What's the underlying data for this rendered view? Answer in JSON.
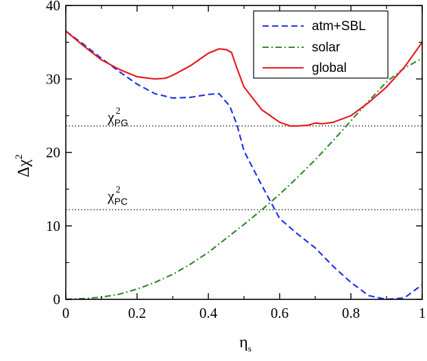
{
  "chart_data": {
    "type": "line",
    "xlabel_main": "η",
    "xlabel_sub": "s",
    "ylabel_main": "Δχ",
    "ylabel_sup": "2",
    "xlim": [
      0,
      1
    ],
    "ylim": [
      0,
      40
    ],
    "xticks": [
      0,
      0.2,
      0.4,
      0.6,
      0.8,
      1
    ],
    "yticks": [
      0,
      10,
      20,
      30,
      40
    ],
    "xtick_labels": [
      "0",
      "0.2",
      "0.4",
      "0.6",
      "0.8",
      "1"
    ],
    "ytick_labels": [
      "0",
      "10",
      "20",
      "30",
      "40"
    ],
    "legend_position": "top-right",
    "series": [
      {
        "name": "atm+SBL",
        "color": "#1f32e6",
        "style": "dashed",
        "x": [
          0,
          0.05,
          0.1,
          0.15,
          0.2,
          0.25,
          0.3,
          0.35,
          0.4,
          0.43,
          0.46,
          0.48,
          0.5,
          0.55,
          0.6,
          0.65,
          0.7,
          0.75,
          0.8,
          0.85,
          0.9,
          0.95,
          1.0
        ],
        "y": [
          36.5,
          34.7,
          32.8,
          31.0,
          29.3,
          28.0,
          27.4,
          27.5,
          27.9,
          28.0,
          26.3,
          23.8,
          20.2,
          15.5,
          11.0,
          8.9,
          7.0,
          4.5,
          2.3,
          0.5,
          0.0,
          0.2,
          2.0
        ]
      },
      {
        "name": "solar",
        "color": "#2e8b2e",
        "style": "dashdot",
        "x": [
          0,
          0.05,
          0.1,
          0.15,
          0.2,
          0.25,
          0.3,
          0.35,
          0.4,
          0.45,
          0.5,
          0.55,
          0.6,
          0.65,
          0.7,
          0.75,
          0.8,
          0.85,
          0.9,
          0.95,
          1.0
        ],
        "y": [
          0.0,
          0.1,
          0.3,
          0.7,
          1.4,
          2.3,
          3.4,
          4.8,
          6.4,
          8.3,
          10.2,
          12.2,
          14.3,
          16.6,
          19.0,
          21.6,
          24.3,
          27.0,
          29.6,
          31.5,
          32.8
        ]
      },
      {
        "name": "global",
        "color": "#e8191e",
        "style": "solid",
        "x": [
          0,
          0.05,
          0.1,
          0.15,
          0.2,
          0.25,
          0.28,
          0.3,
          0.35,
          0.4,
          0.43,
          0.45,
          0.465,
          0.48,
          0.5,
          0.55,
          0.6,
          0.63,
          0.65,
          0.68,
          0.7,
          0.72,
          0.75,
          0.8,
          0.85,
          0.9,
          0.95,
          1.0
        ],
        "y": [
          36.5,
          34.5,
          32.6,
          31.3,
          30.3,
          30.0,
          30.1,
          30.5,
          31.8,
          33.5,
          34.1,
          34.0,
          33.6,
          31.5,
          28.9,
          25.8,
          24.1,
          23.6,
          23.6,
          23.7,
          24.0,
          23.9,
          24.1,
          25.0,
          26.8,
          28.9,
          31.6,
          35.0
        ]
      }
    ],
    "reference_lines": [
      {
        "label_main": "χ",
        "label_sup": "2",
        "label_sub": "PG",
        "y": 23.6,
        "style": "dotted"
      },
      {
        "label_main": "χ",
        "label_sup": "2",
        "label_sub": "PC",
        "y": 12.2,
        "style": "dotted"
      }
    ]
  }
}
